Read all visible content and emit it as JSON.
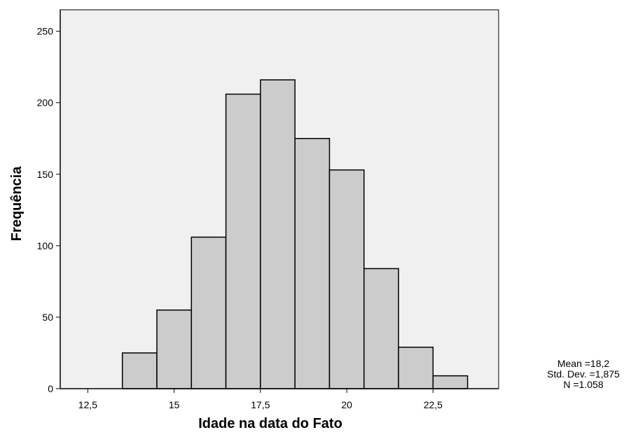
{
  "chart_data": {
    "type": "bar",
    "title": "",
    "xlabel": "Idade na data do Fato",
    "ylabel": "Frequência",
    "x_ticks": [
      12.5,
      15,
      17.5,
      20,
      22.5
    ],
    "x_tick_labels": [
      "12,5",
      "15",
      "17,5",
      "20",
      "22,5"
    ],
    "y_ticks": [
      0,
      50,
      100,
      150,
      200,
      250
    ],
    "y_tick_labels": [
      "0",
      "50",
      "100",
      "150",
      "200",
      "250"
    ],
    "xlim": [
      11.7,
      24.4
    ],
    "ylim": [
      0,
      265
    ],
    "bins": [
      {
        "from": 13.5,
        "to": 14.5,
        "value": 25
      },
      {
        "from": 14.5,
        "to": 15.5,
        "value": 55
      },
      {
        "from": 15.5,
        "to": 16.5,
        "value": 106
      },
      {
        "from": 16.5,
        "to": 17.5,
        "value": 206
      },
      {
        "from": 17.5,
        "to": 18.5,
        "value": 216
      },
      {
        "from": 18.5,
        "to": 19.5,
        "value": 175
      },
      {
        "from": 19.5,
        "to": 20.5,
        "value": 153
      },
      {
        "from": 20.5,
        "to": 21.5,
        "value": 84
      },
      {
        "from": 21.5,
        "to": 22.5,
        "value": 29
      },
      {
        "from": 22.5,
        "to": 23.5,
        "value": 9
      }
    ],
    "stats": {
      "mean": "Mean =18,2",
      "std_dev": "Std. Dev. =1,875",
      "n": "N =1.058"
    },
    "grid": false,
    "colors": {
      "bar_fill": "#cccccc",
      "bar_stroke": "#000000",
      "plot_background": "#f0f0f0"
    }
  }
}
